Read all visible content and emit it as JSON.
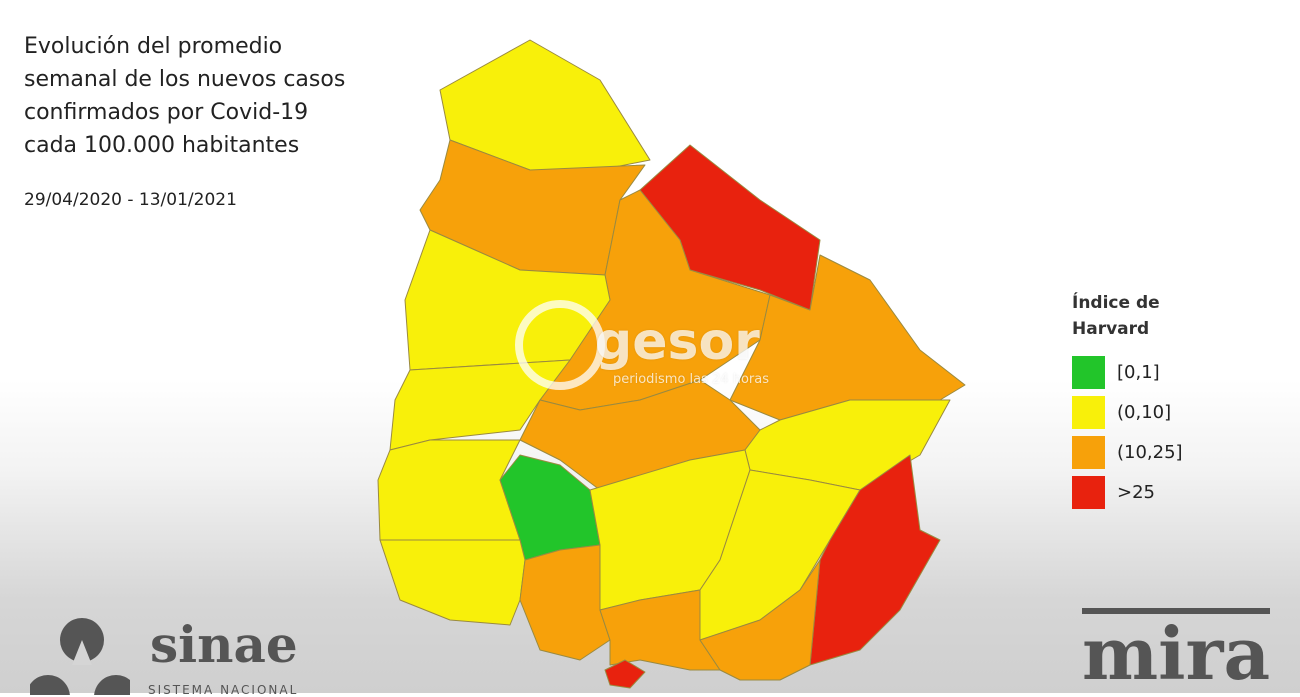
{
  "title": "Evolución del promedio\nsemanal de los nuevos casos\nconfirmados por Covid-19\ncada 100.000 habitantes",
  "date_range": "29/04/2020 - 13/01/2021",
  "legend": {
    "title": "Índice de\nHarvard",
    "items": [
      {
        "label": "[0,1]",
        "color": "#22c52a"
      },
      {
        "label": "(0,10]",
        "color": "#f8f00a"
      },
      {
        "label": "(10,25]",
        "color": "#f7a10a"
      },
      {
        "label": ">25",
        "color": "#e8220e"
      }
    ]
  },
  "regions": [
    {
      "class": "(0,10]"
    },
    {
      "class": "(10,25]"
    },
    {
      "class": ">25"
    },
    {
      "class": "(10,25]"
    },
    {
      "class": "(10,25]"
    },
    {
      "class": "(0,10]"
    },
    {
      "class": "(0,10]"
    },
    {
      "class": "(10,25]"
    },
    {
      "class": "(0,10]"
    },
    {
      "class": "(0,10]"
    },
    {
      "class": "[0,1]"
    },
    {
      "class": "(0,10]"
    },
    {
      "class": "(0,10]"
    },
    {
      "class": ">25"
    },
    {
      "class": "(0,10]"
    },
    {
      "class": "(10,25]"
    },
    {
      "class": "(10,25]"
    },
    {
      "class": "(10,25]"
    },
    {
      "class": ">25"
    }
  ],
  "watermark": {
    "name": "gesor",
    "tagline": "periodismo las 24 horas"
  },
  "logos": {
    "sinae": "sinae",
    "sinae_sub": "SISTEMA NACIONAL",
    "mira": "mira"
  }
}
